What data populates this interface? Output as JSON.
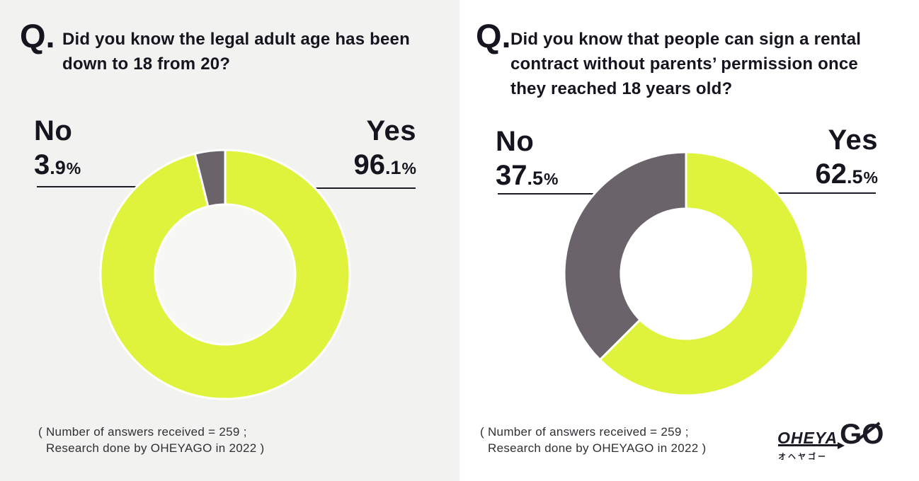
{
  "charts": [
    {
      "q_prefix": "Q.",
      "question_lines": [
        "Did you know the legal adult age has been",
        "down to 18 from 20?"
      ],
      "no": {
        "label": "No",
        "int": "3",
        "frac": ".9",
        "pct": "%"
      },
      "yes": {
        "label": "Yes",
        "int": "96",
        "frac": ".1",
        "pct": "%"
      },
      "footer_line1": "( Number of answers received = 259 ;",
      "footer_line2": "Research done by OHEYAGO in 2022 )"
    },
    {
      "q_prefix": "Q.",
      "question_lines": [
        "Did you know that people can sign a rental",
        "contract without parents’ permission once",
        "they reached 18 years old?"
      ],
      "no": {
        "label": "No",
        "int": "37",
        "frac": ".5",
        "pct": "%"
      },
      "yes": {
        "label": "Yes",
        "int": "62",
        "frac": ".5",
        "pct": "%"
      },
      "footer_line1": "( Number of answers received = 259 ;",
      "footer_line2": "Research done by OHEYAGO in 2022 )"
    }
  ],
  "logo": {
    "oheya": "OHEYA",
    "go": "GO",
    "kana": "オヘヤゴー"
  },
  "colors": {
    "yes": "#dff33c",
    "no": "#6a646a",
    "heading": "#15151f",
    "leader_line": "#1c1c26",
    "left_panel_bg": "#f2f2f0"
  },
  "chart_data": [
    {
      "type": "pie",
      "subtype": "donut",
      "title": "Did you know the legal adult age has been down to 18 from 20?",
      "labels": [
        "Yes",
        "No"
      ],
      "values": [
        96.1,
        3.9
      ],
      "colors": [
        "#dff33c",
        "#6a646a"
      ],
      "start_angle_deg": 0,
      "direction": "clockwise",
      "inner_radius_ratio": 0.56,
      "legend_position": "callout-labels",
      "note": "( Number of answers received = 259 ; Research done by OHEYAGO in 2022 )"
    },
    {
      "type": "pie",
      "subtype": "donut",
      "title": "Did you know that people can sign a rental contract without parents’ permission once they reached 18 years old?",
      "labels": [
        "Yes",
        "No"
      ],
      "values": [
        62.5,
        37.5
      ],
      "colors": [
        "#dff33c",
        "#6a646a"
      ],
      "start_angle_deg": 0,
      "direction": "clockwise",
      "inner_radius_ratio": 0.53,
      "legend_position": "callout-labels",
      "note": "( Number of answers received = 259 ; Research done by OHEYAGO in 2022 )"
    }
  ]
}
